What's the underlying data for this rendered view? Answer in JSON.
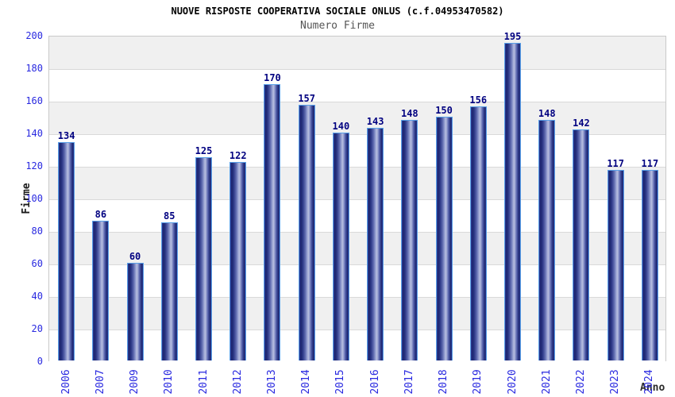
{
  "chart_data": {
    "type": "bar",
    "title": "NUOVE RISPOSTE COOPERATIVA SOCIALE ONLUS (c.f.04953470582)",
    "subtitle": "Numero Firme",
    "xlabel": "Anno",
    "ylabel": "Firme",
    "categories": [
      "2006",
      "2007",
      "2009",
      "2010",
      "2011",
      "2012",
      "2013",
      "2014",
      "2015",
      "2016",
      "2017",
      "2018",
      "2019",
      "2020",
      "2021",
      "2022",
      "2023",
      "2024"
    ],
    "values": [
      134,
      86,
      60,
      85,
      125,
      122,
      170,
      157,
      140,
      143,
      148,
      150,
      156,
      195,
      148,
      142,
      117,
      117
    ],
    "ylim": [
      0,
      200
    ],
    "ytick_step": 20,
    "yticks": [
      0,
      20,
      40,
      60,
      80,
      100,
      120,
      140,
      160,
      180,
      200
    ],
    "grid": true,
    "legend": "none",
    "value_labels_shown": true,
    "colors": {
      "bar_border": "#59a0e8",
      "bar_dark": "#1b266e",
      "bar_highlight": "#b9c0e0",
      "tick_label_text": "#2929e0",
      "value_label_text": "#000080",
      "title_text": "#000000",
      "subtitle_text": "#555555",
      "band_gray": "#f0f0f0",
      "band_white": "#ffffff",
      "grid_line": "#d9d9d9",
      "plot_border": "#c9c9c9"
    }
  }
}
